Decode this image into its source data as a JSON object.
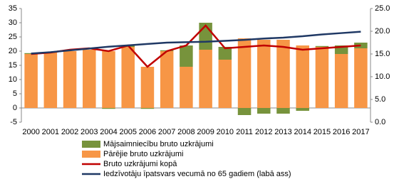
{
  "chart_data": {
    "type": "bar-line",
    "categories": [
      "2000",
      "2001",
      "2002",
      "2003",
      "2004",
      "2005",
      "2006",
      "2007",
      "2008",
      "2009",
      "2010",
      "2011",
      "2012",
      "2013",
      "2014",
      "2015",
      "2016",
      "2017"
    ],
    "series": [
      {
        "name": "Mājsaimniecību bruto uzkrājumi",
        "kind": "bar",
        "color": "#77933c",
        "values": [
          0.3,
          0,
          0,
          0,
          -0.3,
          0.5,
          -0.3,
          0.3,
          7.5,
          9.5,
          4.5,
          -2.5,
          -2,
          -2,
          -1,
          0.3,
          3,
          2
        ]
      },
      {
        "name": "Pārējie bruto uzkrājumi",
        "kind": "bar",
        "color": "#f79646",
        "values": [
          19,
          19.5,
          20,
          20.5,
          20,
          21.5,
          14.5,
          20,
          14.5,
          20.5,
          17,
          24.5,
          24,
          24,
          22,
          21.5,
          19,
          21
        ]
      },
      {
        "name": "Bruto uzkrājumi kopā",
        "kind": "line",
        "color": "#c00000",
        "values": [
          19,
          19.5,
          20.5,
          21,
          20,
          22,
          14.5,
          20,
          22,
          29,
          21,
          21.5,
          22,
          21.5,
          20.5,
          21,
          21.5,
          22
        ]
      },
      {
        "name": "Iedzīvotāju īpatsvars vecumā no 65 gadiem (labā ass)",
        "kind": "line",
        "axis": "y2",
        "color": "#1f3864",
        "values": [
          15.1,
          15.4,
          15.8,
          16.2,
          16.6,
          16.9,
          17.2,
          17.5,
          17.6,
          17.7,
          17.9,
          18.1,
          18.4,
          18.6,
          18.9,
          19.3,
          19.6,
          19.9
        ]
      }
    ],
    "ylim": [
      -5,
      35
    ],
    "yticks": [
      -5,
      0,
      5,
      10,
      15,
      20,
      25,
      30,
      35
    ],
    "y2lim": [
      0,
      25
    ],
    "y2ticks": [
      {
        "value": 0,
        "label": "0.0"
      },
      {
        "value": 5,
        "label": "5.0"
      },
      {
        "value": 10,
        "label": "10.0"
      },
      {
        "value": 15,
        "label": "15.0"
      },
      {
        "value": 20,
        "label": "20.0"
      },
      {
        "value": 25,
        "label": "25.0"
      }
    ],
    "grid": false
  }
}
